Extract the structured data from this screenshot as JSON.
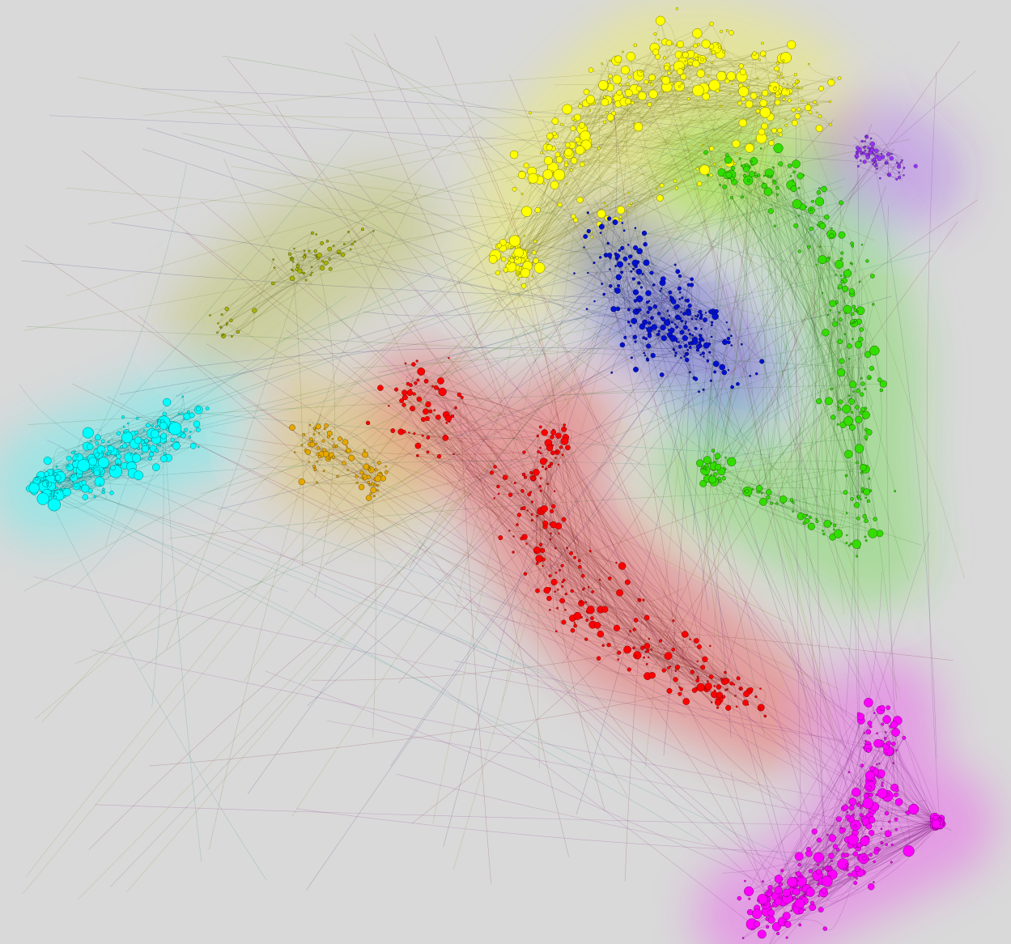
{
  "clusters": [
    {
      "color": "#ffff00"
    },
    {
      "color": "#33dd00"
    },
    {
      "color": "#0010d0"
    },
    {
      "color": "#ff0000"
    },
    {
      "color": "#ff00ff"
    },
    {
      "color": "#00ffff"
    },
    {
      "color": "#e6a800"
    },
    {
      "color": "#9933ff"
    },
    {
      "color": "#a8b400"
    }
  ]
}
